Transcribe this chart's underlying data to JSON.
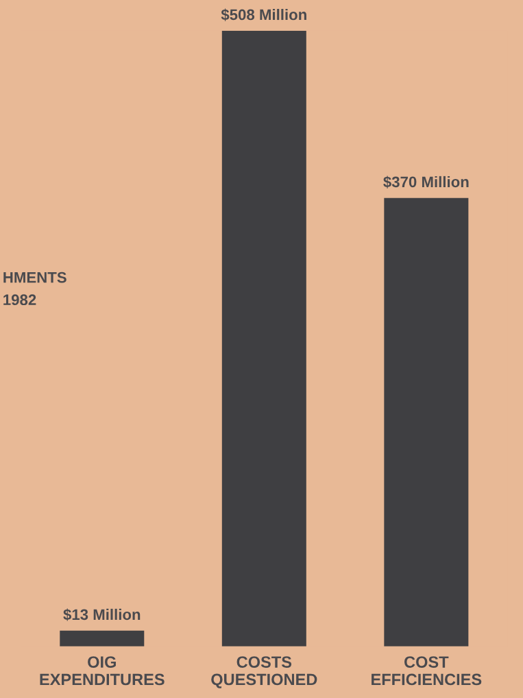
{
  "chart_data": {
    "type": "bar",
    "categories": [
      "OIG\nEXPENDITURES",
      "COSTS\nQUESTIONED",
      "COST\nEFFICIENCIES"
    ],
    "values": [
      13,
      508,
      370
    ],
    "value_labels": [
      "$13 Million",
      "$508 Million",
      "$370 Million"
    ],
    "color": "#3f3f42",
    "tick_labels": "x",
    "grid": false,
    "annotations": [
      "HMENTS",
      "1982"
    ]
  }
}
